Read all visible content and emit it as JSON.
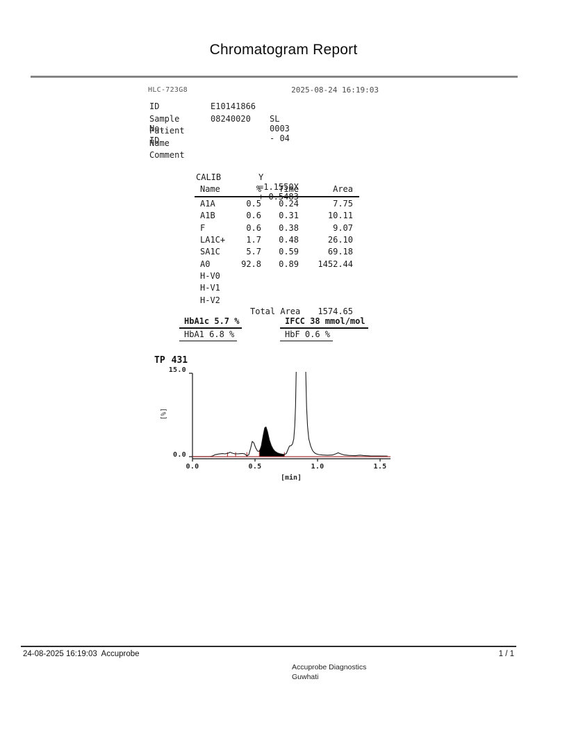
{
  "page": {
    "title": "Chromatogram Report",
    "footer": {
      "left": "24-08-2025 16:19:03  Accuprobe",
      "page_num": "1 / 1",
      "org_name": "Accuprobe Diagnostics",
      "org_city": "Guwhati"
    }
  },
  "report": {
    "device": "HLC-723G8",
    "datetime": "2025-08-24 16:19:03",
    "fields": [
      {
        "label": "ID",
        "value": "E10141866",
        "extra": ""
      },
      {
        "label": "Sample No.",
        "value": "08240020",
        "extra": "SL 0003 - 04"
      },
      {
        "label": "Patient ID",
        "value": "",
        "extra": ""
      },
      {
        "label": "Name",
        "value": "",
        "extra": ""
      },
      {
        "label": "Comment",
        "value": "",
        "extra": ""
      }
    ],
    "calib": {
      "label": "CALIB",
      "equation": "Y =1.1550X + 0.5483"
    },
    "table": {
      "headers": {
        "name": "Name",
        "pct": "%",
        "time": "Time",
        "area": "Area"
      },
      "rows": [
        {
          "name": "A1A",
          "pct": "0.5",
          "time": "0.24",
          "area": "7.75"
        },
        {
          "name": "A1B",
          "pct": "0.6",
          "time": "0.31",
          "area": "10.11"
        },
        {
          "name": "F",
          "pct": "0.6",
          "time": "0.38",
          "area": "9.07"
        },
        {
          "name": "LA1C+",
          "pct": "1.7",
          "time": "0.48",
          "area": "26.10"
        },
        {
          "name": "SA1C",
          "pct": "5.7",
          "time": "0.59",
          "area": "69.18"
        },
        {
          "name": "A0",
          "pct": "92.8",
          "time": "0.89",
          "area": "1452.44"
        },
        {
          "name": "H-V0",
          "pct": "",
          "time": "",
          "area": ""
        },
        {
          "name": "H-V1",
          "pct": "",
          "time": "",
          "area": ""
        },
        {
          "name": "H-V2",
          "pct": "",
          "time": "",
          "area": ""
        }
      ]
    },
    "total_area": {
      "label": "Total Area",
      "value": "1574.65"
    },
    "results": [
      {
        "text": "HbA1c 5.7 %"
      },
      {
        "text": "IFCC 38 mmol/mol"
      },
      {
        "text": "HbA1 6.8 %"
      },
      {
        "text": "HbF 0.6 %"
      }
    ]
  },
  "chart_data": {
    "type": "line",
    "title": "TP 431",
    "tp_label": "TP",
    "tp_value": "431",
    "ylabel": "[%]",
    "xlabel": "[min]",
    "ylim": [
      0,
      15
    ],
    "xlim": [
      0,
      1.58
    ],
    "ytick_labels": {
      "max": "15.0",
      "min": "0.0"
    },
    "xticks": [
      0,
      0.5,
      1.0,
      1.5
    ],
    "xtick_labels": [
      "0.0",
      "0.5",
      "1.0",
      "1.5"
    ],
    "grid": false,
    "curve_color": "#1a1a1a",
    "baseline_color": "#aa3333",
    "filled_peak": {
      "name": "SA1C",
      "t_start": 0.535,
      "t_end": 0.735,
      "fill": "#000000"
    },
    "delimiters": [
      {
        "t": 0.28,
        "h": 0.8
      },
      {
        "t": 0.345,
        "h": 0.8
      },
      {
        "t": 0.435,
        "h": 0.8
      },
      {
        "t": 0.535,
        "h": 1.2
      },
      {
        "t": 0.735,
        "h": 0.8
      }
    ],
    "curve": [
      [
        0.0,
        0.02
      ],
      [
        0.14,
        0.02
      ],
      [
        0.16,
        0.12
      ],
      [
        0.18,
        0.35
      ],
      [
        0.21,
        0.48
      ],
      [
        0.24,
        0.55
      ],
      [
        0.26,
        0.5
      ],
      [
        0.285,
        0.62
      ],
      [
        0.3,
        0.8
      ],
      [
        0.32,
        0.62
      ],
      [
        0.34,
        0.5
      ],
      [
        0.37,
        0.52
      ],
      [
        0.4,
        0.58
      ],
      [
        0.42,
        0.48
      ],
      [
        0.435,
        0.12
      ],
      [
        0.45,
        0.35
      ],
      [
        0.465,
        1.5
      ],
      [
        0.478,
        2.75
      ],
      [
        0.49,
        2.5
      ],
      [
        0.505,
        1.6
      ],
      [
        0.52,
        1.0
      ],
      [
        0.535,
        0.95
      ],
      [
        0.55,
        1.9
      ],
      [
        0.565,
        3.8
      ],
      [
        0.578,
        5.2
      ],
      [
        0.588,
        5.35
      ],
      [
        0.6,
        4.5
      ],
      [
        0.615,
        3.0
      ],
      [
        0.63,
        2.0
      ],
      [
        0.645,
        1.35
      ],
      [
        0.66,
        0.95
      ],
      [
        0.68,
        0.68
      ],
      [
        0.7,
        0.52
      ],
      [
        0.72,
        0.44
      ],
      [
        0.735,
        0.4
      ],
      [
        0.75,
        0.55
      ],
      [
        0.762,
        1.2
      ],
      [
        0.775,
        1.9
      ],
      [
        0.79,
        2.0
      ],
      [
        0.8,
        2.3
      ],
      [
        0.81,
        3.2
      ],
      [
        0.818,
        5.5
      ],
      [
        0.824,
        9.0
      ],
      [
        0.83,
        16.0
      ],
      [
        0.905,
        16.0
      ],
      [
        0.912,
        9.0
      ],
      [
        0.92,
        5.5
      ],
      [
        0.93,
        3.2
      ],
      [
        0.945,
        1.9
      ],
      [
        0.96,
        1.1
      ],
      [
        0.975,
        0.7
      ],
      [
        0.99,
        0.5
      ],
      [
        1.01,
        0.38
      ],
      [
        1.04,
        0.3
      ],
      [
        1.08,
        0.26
      ],
      [
        1.12,
        0.3
      ],
      [
        1.15,
        0.55
      ],
      [
        1.165,
        0.7
      ],
      [
        1.18,
        0.55
      ],
      [
        1.21,
        0.32
      ],
      [
        1.25,
        0.22
      ],
      [
        1.3,
        0.18
      ],
      [
        1.34,
        0.28
      ],
      [
        1.37,
        0.2
      ],
      [
        1.42,
        0.14
      ],
      [
        1.48,
        0.12
      ],
      [
        1.56,
        0.1
      ]
    ]
  }
}
